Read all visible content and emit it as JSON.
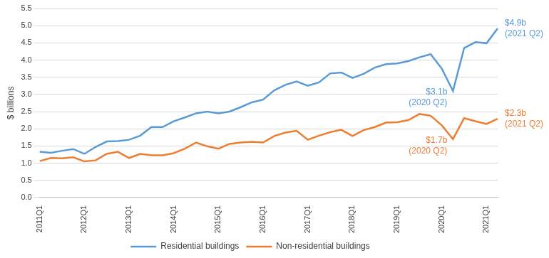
{
  "chart_data": {
    "type": "line",
    "y_label": "$ billions",
    "categories": [
      "2011Q1",
      null,
      null,
      null,
      "2012Q1",
      null,
      null,
      null,
      "2013Q1",
      null,
      null,
      null,
      "2014Q1",
      null,
      null,
      null,
      "2015Q1",
      null,
      null,
      null,
      "2016Q1",
      null,
      null,
      null,
      "2017Q1",
      null,
      null,
      null,
      "2018Q1",
      null,
      null,
      null,
      "2019Q1",
      null,
      null,
      null,
      "2020Q1",
      null,
      null,
      null,
      "2021Q1",
      null
    ],
    "series": [
      {
        "name": "Residential buildings",
        "color": "#5b9bd5",
        "values": [
          1.33,
          1.3,
          1.36,
          1.41,
          1.27,
          1.47,
          1.63,
          1.64,
          1.68,
          1.8,
          2.05,
          2.05,
          2.22,
          2.33,
          2.45,
          2.5,
          2.45,
          2.5,
          2.63,
          2.77,
          2.85,
          3.12,
          3.28,
          3.38,
          3.25,
          3.35,
          3.61,
          3.64,
          3.48,
          3.6,
          3.78,
          3.88,
          3.9,
          3.97,
          4.08,
          4.17,
          3.75,
          3.1,
          4.35,
          4.52,
          4.49,
          4.92
        ]
      },
      {
        "name": "Non-residential buildings",
        "color": "#ed7d31",
        "values": [
          1.06,
          1.15,
          1.14,
          1.17,
          1.05,
          1.08,
          1.27,
          1.33,
          1.15,
          1.27,
          1.23,
          1.23,
          1.29,
          1.42,
          1.6,
          1.49,
          1.42,
          1.56,
          1.6,
          1.62,
          1.6,
          1.79,
          1.89,
          1.94,
          1.68,
          1.8,
          1.9,
          1.97,
          1.79,
          1.96,
          2.05,
          2.18,
          2.19,
          2.25,
          2.43,
          2.38,
          2.1,
          1.7,
          2.31,
          2.22,
          2.14,
          2.29
        ]
      }
    ],
    "annotations": [
      {
        "series": 0,
        "index": 41,
        "text": [
          "$4.9b",
          "(2021 Q2)"
        ]
      },
      {
        "series": 0,
        "index": 37,
        "text": [
          "$3.1b",
          "(2020 Q2)"
        ]
      },
      {
        "series": 1,
        "index": 41,
        "text": [
          "$2.3b",
          "(2021 Q2)"
        ]
      },
      {
        "series": 1,
        "index": 37,
        "text": [
          "$1.7b",
          "(2020 Q2)"
        ]
      }
    ],
    "ylim": [
      0,
      5.5
    ],
    "yticks": [
      {
        "value": 0,
        "label": "0.0"
      },
      {
        "value": 0.5,
        "label": "0.5"
      },
      {
        "value": 1,
        "label": "1.0"
      },
      {
        "value": 1.5,
        "label": "1.5"
      },
      {
        "value": 2,
        "label": "2.0"
      },
      {
        "value": 2.5,
        "label": "2.5"
      },
      {
        "value": 3,
        "label": "3.0"
      },
      {
        "value": 3.5,
        "label": "3.5"
      },
      {
        "value": 4,
        "label": "4.0"
      },
      {
        "value": 4.5,
        "label": "4.5"
      },
      {
        "value": 5,
        "label": "5.0"
      },
      {
        "value": 5.5,
        "label": "5.5"
      }
    ],
    "grid": true,
    "legend": "bottom"
  }
}
